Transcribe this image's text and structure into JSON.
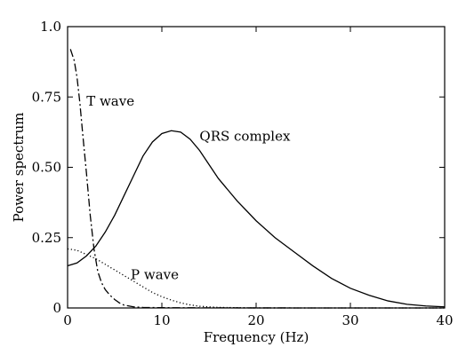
{
  "chart_data": {
    "type": "line",
    "title": "",
    "xlabel": "Frequency (Hz)",
    "ylabel": "Power spectrum",
    "xlim": [
      0,
      40
    ],
    "ylim": [
      0,
      1.0
    ],
    "x_ticks": [
      0,
      10,
      20,
      30,
      40
    ],
    "x_tick_labels": [
      "0",
      "10",
      "20",
      "30",
      "40"
    ],
    "y_ticks": [
      0,
      0.25,
      0.5,
      0.75,
      1.0
    ],
    "y_tick_labels": [
      "0",
      "0.25",
      "0.50",
      "0.75",
      "1.0"
    ],
    "grid": false,
    "legend": "none",
    "series": [
      {
        "name": "QRS complex",
        "style": "solid",
        "x": [
          0,
          1,
          2,
          3,
          4,
          5,
          6,
          7,
          8,
          9,
          10,
          11,
          12,
          13,
          14,
          15,
          16,
          17,
          18,
          19,
          20,
          22,
          24,
          26,
          28,
          30,
          32,
          34,
          36,
          38,
          40
        ],
        "y": [
          0.15,
          0.16,
          0.185,
          0.22,
          0.27,
          0.33,
          0.4,
          0.47,
          0.54,
          0.59,
          0.62,
          0.63,
          0.625,
          0.6,
          0.56,
          0.51,
          0.46,
          0.42,
          0.38,
          0.345,
          0.31,
          0.25,
          0.2,
          0.15,
          0.105,
          0.07,
          0.045,
          0.025,
          0.013,
          0.007,
          0.004
        ]
      },
      {
        "name": "T wave",
        "style": "dashdot",
        "x": [
          0.3,
          0.7,
          1.0,
          1.3,
          1.6,
          2.0,
          2.4,
          2.8,
          3.2,
          3.6,
          4.0,
          4.5,
          5.0,
          5.5,
          6.0,
          7.0,
          8.0,
          10,
          14,
          20,
          30,
          40
        ],
        "y": [
          0.92,
          0.88,
          0.82,
          0.73,
          0.62,
          0.48,
          0.33,
          0.21,
          0.13,
          0.09,
          0.065,
          0.045,
          0.03,
          0.018,
          0.01,
          0.004,
          0.002,
          0.001,
          0.0005,
          0.0002,
          0.0,
          0.0
        ]
      },
      {
        "name": "P wave",
        "style": "dotted",
        "x": [
          0,
          1,
          2,
          3,
          4,
          5,
          6,
          7,
          8,
          9,
          10,
          11,
          12,
          13,
          14,
          16,
          18,
          20,
          25,
          30,
          40
        ],
        "y": [
          0.21,
          0.205,
          0.19,
          0.175,
          0.155,
          0.135,
          0.115,
          0.095,
          0.075,
          0.055,
          0.04,
          0.028,
          0.018,
          0.011,
          0.006,
          0.002,
          0.001,
          0.0,
          0.0,
          0.0,
          0.0
        ]
      }
    ],
    "annotations": [
      {
        "text": "T wave",
        "x": 2.0,
        "y": 0.72
      },
      {
        "text": "QRS complex",
        "x": 14.0,
        "y": 0.595
      },
      {
        "text": "P wave",
        "x": 6.7,
        "y": 0.103
      }
    ]
  }
}
